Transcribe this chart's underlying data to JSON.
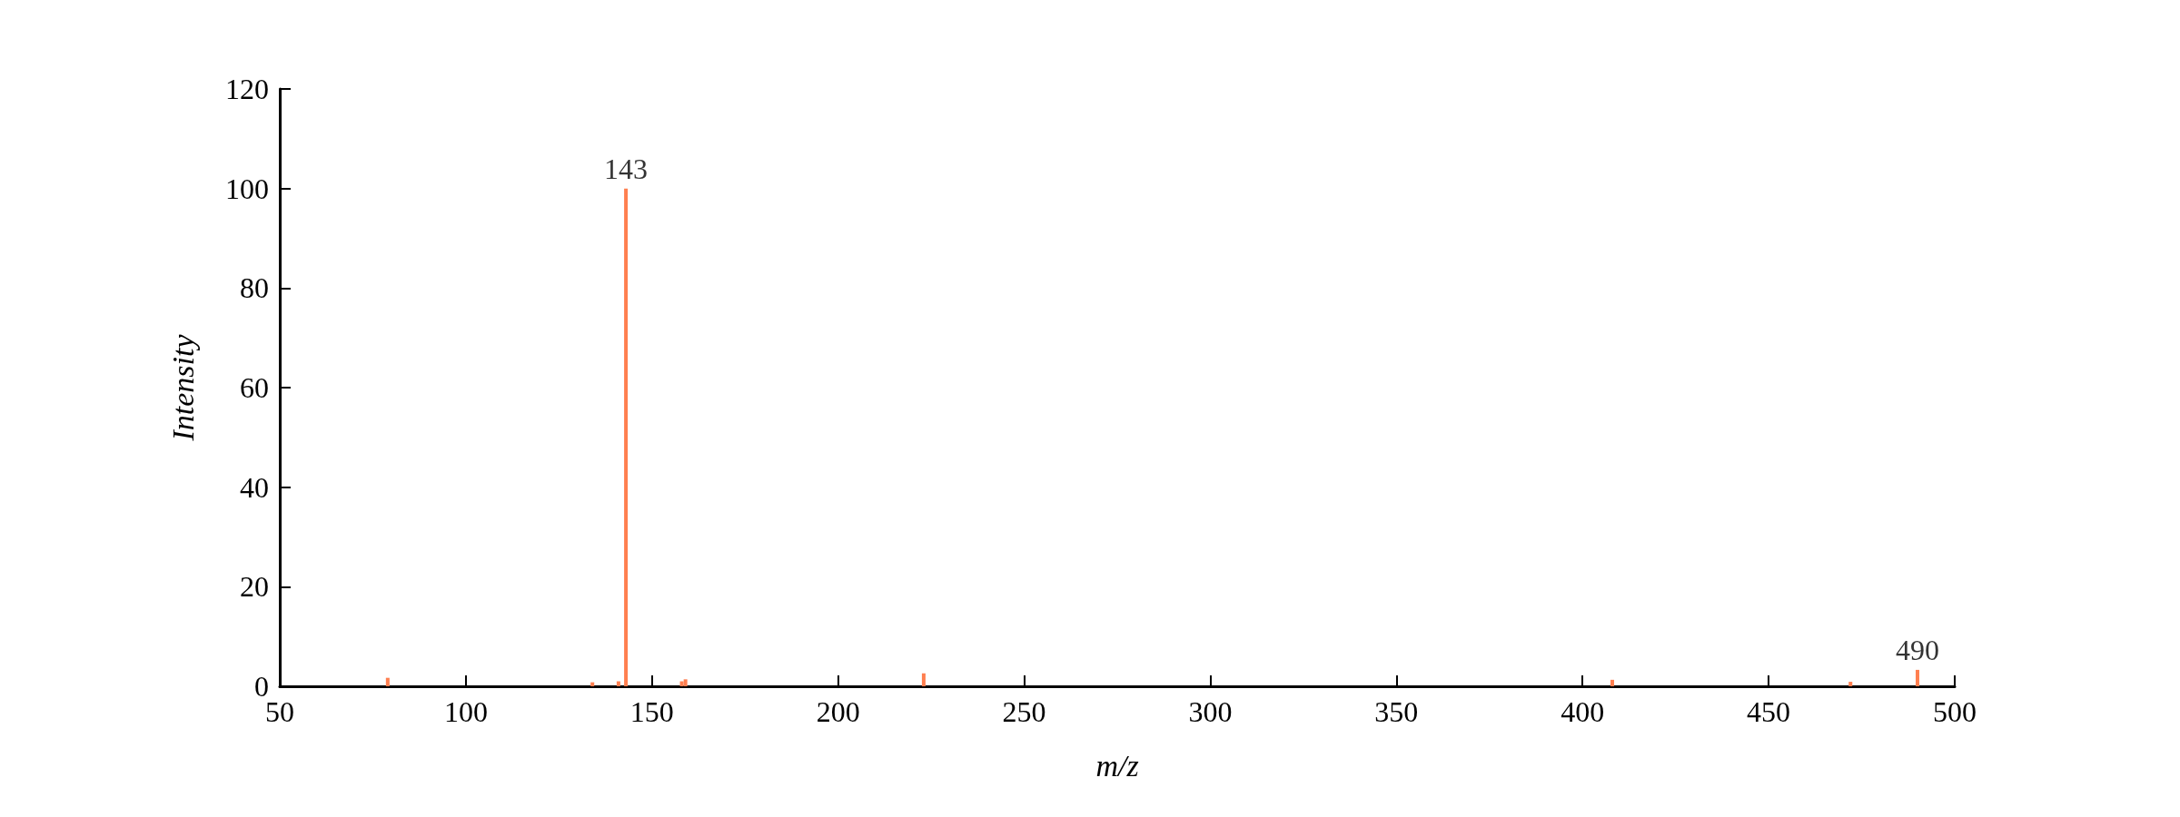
{
  "chart_data": {
    "type": "bar",
    "xlabel": "m/z",
    "ylabel": "Intensity",
    "x": [
      79,
      134,
      141,
      143,
      158,
      159,
      223,
      408,
      472,
      490
    ],
    "series": [
      {
        "color": "#ff7f50",
        "values": [
          1.7,
          0.8,
          1.0,
          100,
          1.0,
          1.4,
          2.6,
          1.3,
          0.9,
          3.3
        ]
      }
    ],
    "xlim": [
      50,
      500
    ],
    "xticks": [
      50,
      100,
      150,
      200,
      250,
      300,
      350,
      400,
      450,
      500
    ],
    "ylim": [
      0,
      120
    ],
    "yticks": [
      0,
      20,
      40,
      60,
      80,
      100,
      120
    ],
    "grid": false,
    "annotations": [
      {
        "text": "143",
        "x": 143,
        "y": 100
      },
      {
        "text": "490",
        "x": 490,
        "y": 3.3
      }
    ]
  }
}
